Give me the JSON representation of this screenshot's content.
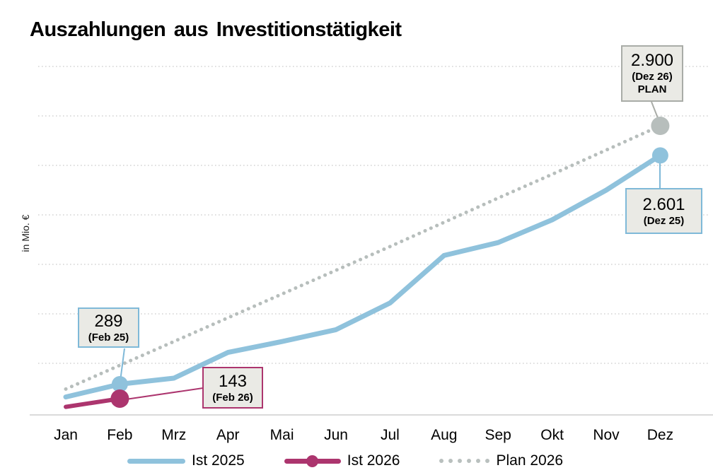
{
  "header": {
    "title": "Auszahlungen aus Investitionstätigkeit"
  },
  "chart_data": {
    "type": "line",
    "title": "Auszahlungen aus Investitionstätigkeit",
    "ylabel": "in Mio. €",
    "xlabel": "",
    "ylim": [
      0,
      3500
    ],
    "gridline_step": 500,
    "grid": "horizontal-dotted",
    "legend_position": "bottom",
    "categories": [
      "Jan",
      "Feb",
      "Mrz",
      "Apr",
      "Mai",
      "Jun",
      "Jul",
      "Aug",
      "Sep",
      "Okt",
      "Nov",
      "Dez"
    ],
    "series": [
      {
        "name": "Ist 2025",
        "color": "#8FC2DC",
        "style": "solid",
        "values": [
          160,
          289,
          350,
          610,
          720,
          840,
          1110,
          1590,
          1720,
          1950,
          2250,
          2601
        ],
        "markers": [
          {
            "month": "Feb",
            "value": 289
          },
          {
            "month": "Dez",
            "value": 2601
          }
        ]
      },
      {
        "name": "Ist 2026",
        "color": "#AC356E",
        "style": "solid",
        "values": [
          60,
          143
        ],
        "markers": [
          {
            "month": "Feb",
            "value": 143
          }
        ]
      },
      {
        "name": "Plan 2026",
        "color": "#B7BEBC",
        "style": "dotted",
        "values": [
          240,
          480,
          720,
          960,
          1200,
          1440,
          1680,
          1925,
          2170,
          2410,
          2655,
          2900
        ],
        "markers": [
          {
            "month": "Dez",
            "value": 2900
          }
        ]
      }
    ]
  },
  "callouts": [
    {
      "value": "289",
      "sub": "(Feb 25)",
      "series": "Ist 2025"
    },
    {
      "value": "143",
      "sub": "(Feb 26)",
      "series": "Ist 2026"
    },
    {
      "value": "2.601",
      "sub": "(Dez 25)",
      "series": "Ist 2025"
    },
    {
      "value": "2.900",
      "sub": "(Dez 26)",
      "sub2": "PLAN",
      "series": "Plan 2026"
    }
  ],
  "colors": {
    "ist_2025": "#8FC2DC",
    "ist_2026": "#AC356E",
    "plan_2026": "#B7BEBC",
    "callout_background": "#EAEAE5",
    "gridline": "#D4D4D4",
    "axis_line": "#DADADA",
    "text": "#000000"
  }
}
